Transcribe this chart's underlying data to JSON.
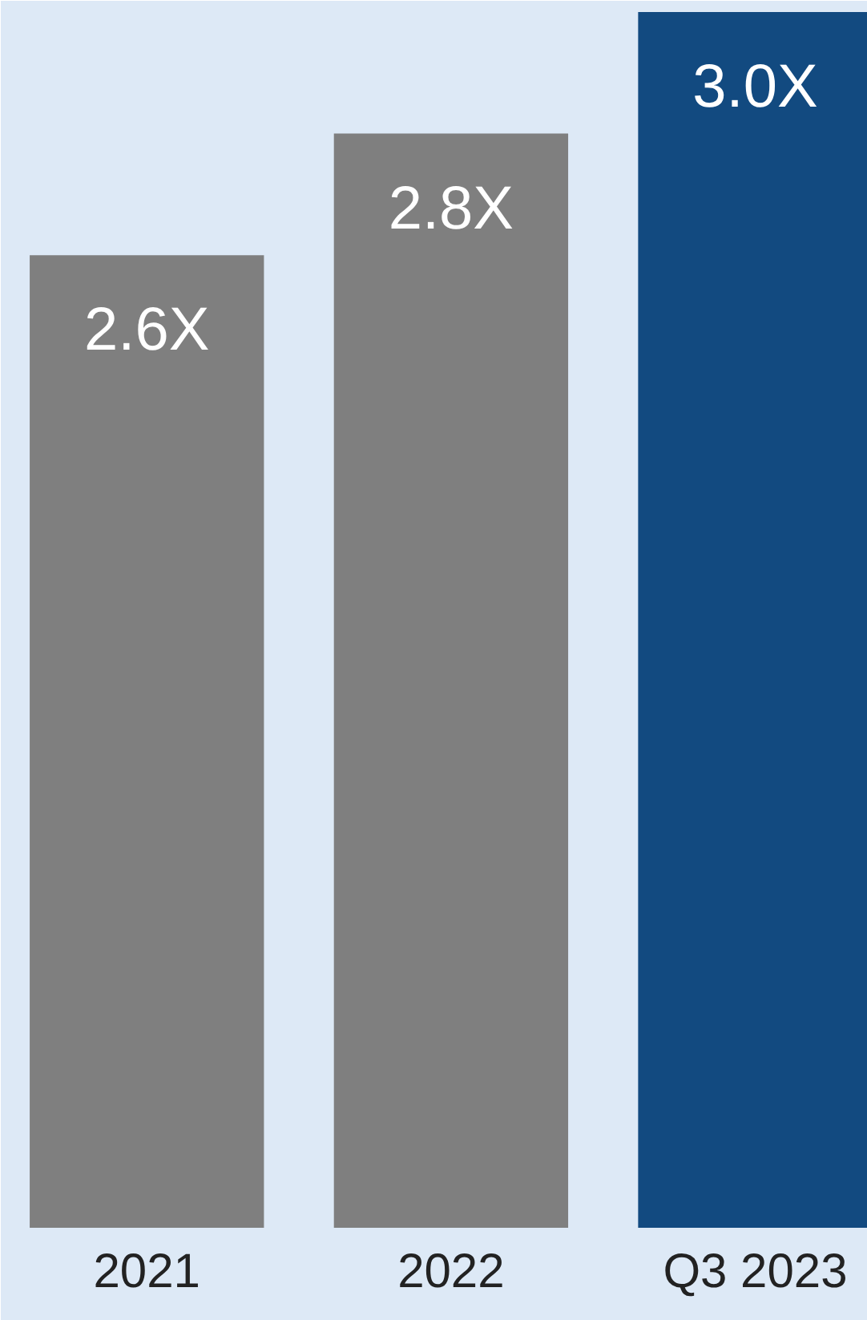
{
  "chart_data": {
    "type": "bar",
    "categories": [
      "2021",
      "2022",
      "Q3 2023"
    ],
    "values": [
      2.6,
      2.8,
      3.0
    ],
    "colors": [
      "#7f7f7f",
      "#7f7f7f",
      "#124a80"
    ],
    "value_labels": [
      "2.6X",
      "2.8X",
      "3.0X"
    ],
    "ylim": [
      1.0,
      3.0
    ],
    "grid": false,
    "tick_labels": "x"
  }
}
